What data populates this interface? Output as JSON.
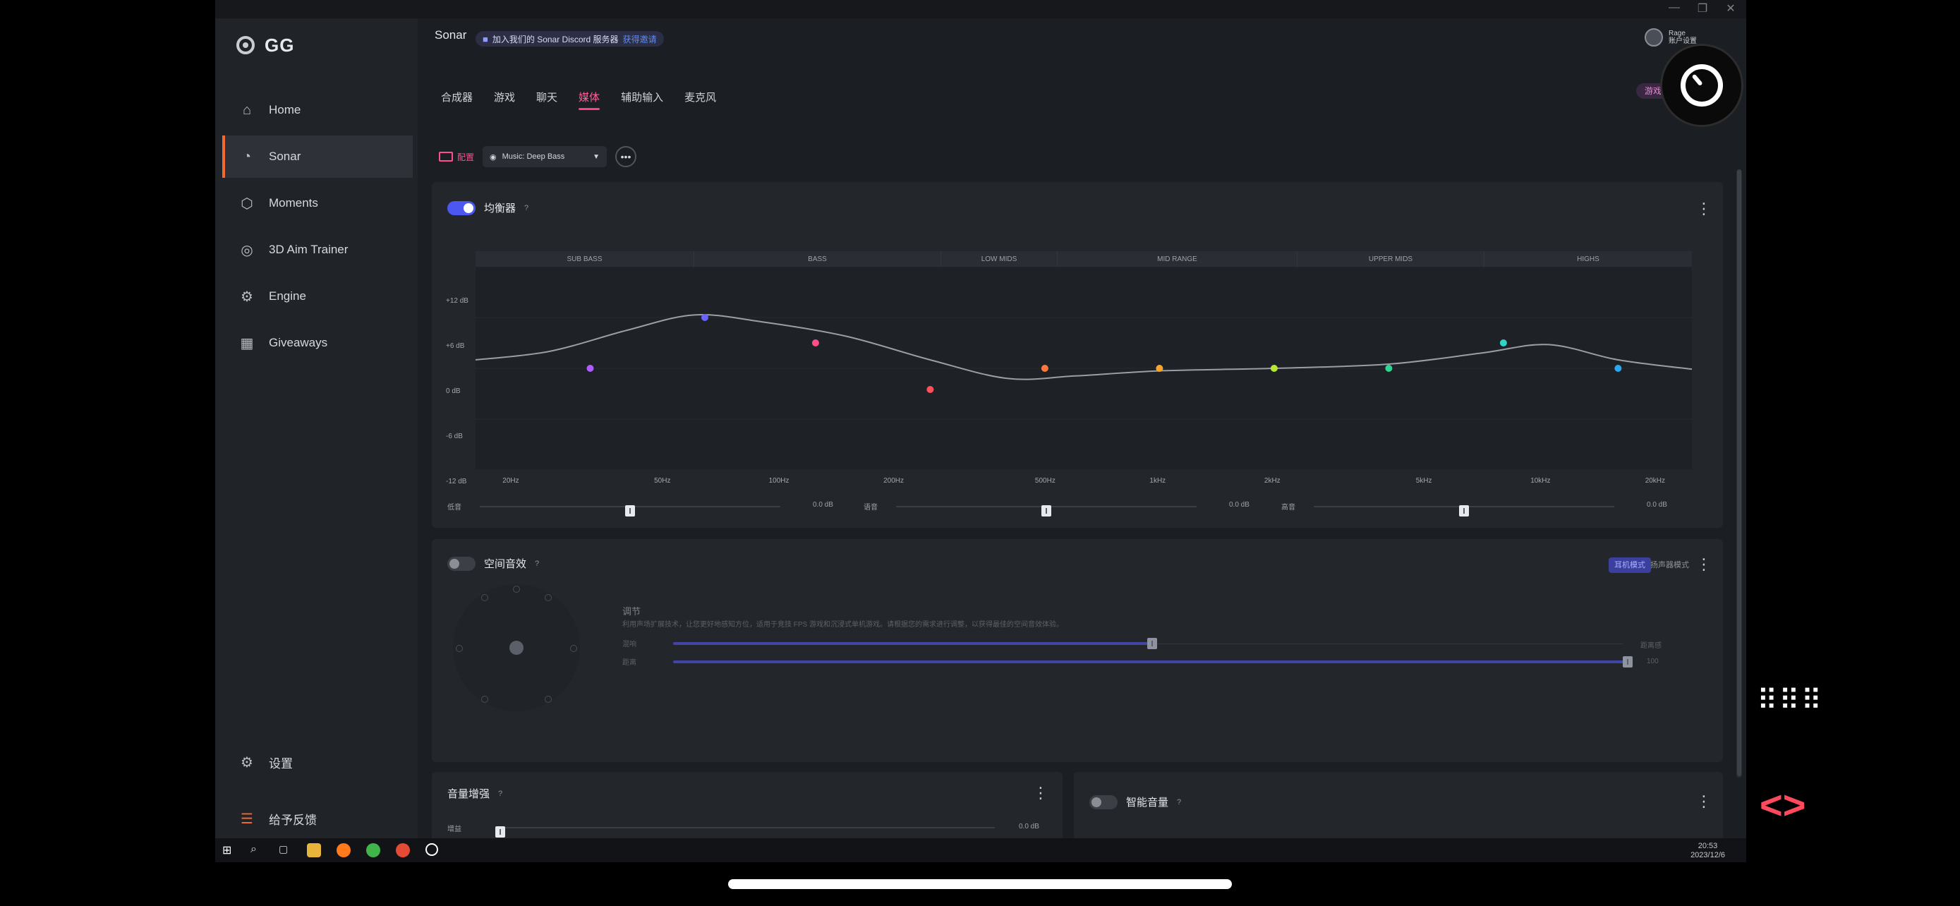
{
  "window": {
    "controls": [
      "—",
      "❐",
      "✕"
    ]
  },
  "sidebar": {
    "brand": "GG",
    "items": [
      {
        "label": "Home",
        "icon": "home-icon",
        "glyph": "⌂"
      },
      {
        "label": "Sonar",
        "icon": "sonar-icon",
        "glyph": "◔",
        "active": true
      },
      {
        "label": "Moments",
        "icon": "moments-icon",
        "glyph": "⬡"
      },
      {
        "label": "3D Aim Trainer",
        "icon": "aim-trainer-icon",
        "glyph": "◎"
      },
      {
        "label": "Engine",
        "icon": "engine-icon",
        "glyph": "⚙"
      },
      {
        "label": "Giveaways",
        "icon": "gift-icon",
        "glyph": "🎁"
      }
    ],
    "settings": "设置",
    "feedback": "给予反馈"
  },
  "header": {
    "title": "Sonar",
    "discord_text": "加入我们的 Sonar Discord 服务器",
    "discord_link": "获得邀请",
    "user_name": "Rage",
    "user_sub": "账户设置"
  },
  "tabs": [
    "合成器",
    "游戏",
    "聊天",
    "媒体",
    "辅助输入",
    "麦克风"
  ],
  "active_tab": "媒体",
  "pink_pill": "游戏专用麦克",
  "preset": {
    "label": "配置",
    "value": "Music: Deep Bass"
  },
  "equalizer": {
    "title": "均衡器",
    "enabled": true,
    "bands": [
      "SUB BASS",
      "BASS",
      "LOW MIDS",
      "MID RANGE",
      "UPPER MIDS",
      "HIGHS"
    ],
    "y_ticks": [
      "+12 dB",
      "+6 dB",
      "0 dB",
      "-6 dB",
      "-12 dB"
    ],
    "x_ticks": [
      "20Hz",
      "50Hz",
      "100Hz",
      "200Hz",
      "500Hz",
      "1kHz",
      "2kHz",
      "5kHz",
      "10kHz",
      "20kHz"
    ],
    "sliders": [
      {
        "label": "低音",
        "value": "0.0 dB"
      },
      {
        "label": "语音",
        "value": "0.0 dB"
      },
      {
        "label": "高音",
        "value": "0.0 dB"
      }
    ]
  },
  "chart_data": {
    "type": "line",
    "x_scale": "log",
    "xlim": [
      16,
      25000
    ],
    "ylim": [
      -12,
      12
    ],
    "curve": [
      {
        "x": 16,
        "y": 1
      },
      {
        "x": 25,
        "y": 2
      },
      {
        "x": 40,
        "y": 4.5
      },
      {
        "x": 60,
        "y": 6.3
      },
      {
        "x": 90,
        "y": 5.5
      },
      {
        "x": 150,
        "y": 3.8
      },
      {
        "x": 250,
        "y": 1
      },
      {
        "x": 400,
        "y": -1.2
      },
      {
        "x": 600,
        "y": -0.9
      },
      {
        "x": 1000,
        "y": -0.3
      },
      {
        "x": 2000,
        "y": 0
      },
      {
        "x": 4000,
        "y": 0.5
      },
      {
        "x": 7000,
        "y": 1.8
      },
      {
        "x": 10500,
        "y": 2.8
      },
      {
        "x": 16000,
        "y": 1
      },
      {
        "x": 25000,
        "y": -0.1
      }
    ],
    "points": [
      {
        "x": 32,
        "y": 0,
        "color": "#b15cff"
      },
      {
        "x": 64,
        "y": 6,
        "color": "#6a63ff"
      },
      {
        "x": 125,
        "y": 3,
        "color": "#ff4f86"
      },
      {
        "x": 250,
        "y": -2.5,
        "color": "#ff4f5a"
      },
      {
        "x": 500,
        "y": 0,
        "color": "#ff7a3a"
      },
      {
        "x": 1000,
        "y": 0,
        "color": "#ffa42a"
      },
      {
        "x": 2000,
        "y": 0,
        "color": "#b6e832"
      },
      {
        "x": 4000,
        "y": 0,
        "color": "#2fd592"
      },
      {
        "x": 8000,
        "y": 3,
        "color": "#2fd6c7"
      },
      {
        "x": 16000,
        "y": 0,
        "color": "#29a9f5"
      }
    ],
    "grid": true
  },
  "spatial": {
    "title": "空间音效",
    "enabled": false,
    "mode_active": "耳机模式",
    "mode_other": "扬声器模式",
    "adjust_title": "调节",
    "adjust_desc": "利用声场扩展技术，让您更好地感知方位，适用于竞技 FPS 游戏和沉浸式单机游戏。请根据您的需求进行调整，以获得最佳的空间音效体验。",
    "s1_label": "混响",
    "s1_value": "距离感",
    "s2_label": "距离",
    "s2_value": "100"
  },
  "volume_boost": {
    "title": "音量增强",
    "slider_label": "增益",
    "value": "0.0 dB"
  },
  "smart_volume": {
    "title": "智能音量",
    "enabled": false
  },
  "taskbar": {
    "time": "20:53",
    "date": "2023/12/6"
  }
}
